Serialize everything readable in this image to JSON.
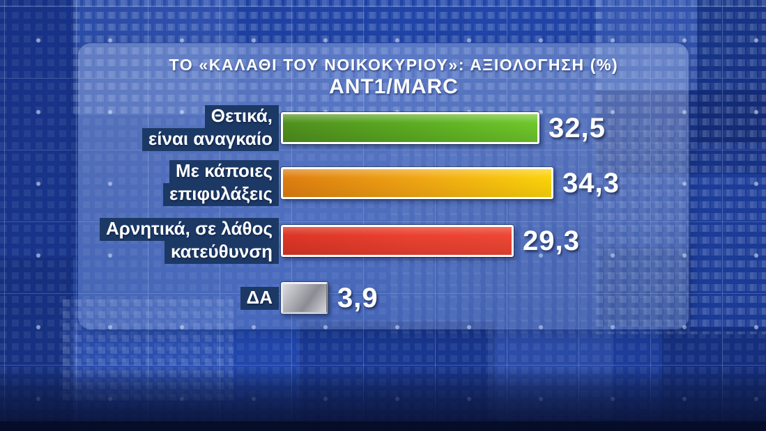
{
  "header": {
    "title": "ΤΟ «ΚΑΛΑΘΙ ΤΟΥ ΝΟΙΚΟΚΥΡΙΟΥ»: ΑΞΙΟΛΟΓΗΣΗ (%)",
    "subtitle": "ANT1/MARC"
  },
  "chart_data": {
    "type": "bar",
    "orientation": "horizontal",
    "unit": "%",
    "title": "ΤΟ «ΚΑΛΑΘΙ ΤΟΥ ΝΟΙΚΟΚΥΡΙΟΥ»: ΑΞΙΟΛΟΓΗΣΗ (%)",
    "subtitle": "ANT1/MARC",
    "categories": [
      "Θετικά, είναι αναγκαίο",
      "Με κάποιες επιφυλάξεις",
      "Αρνητικά, σε λάθος κατεύθυνση",
      "ΔΑ"
    ],
    "values": [
      32.5,
      34.3,
      29.3,
      3.9
    ],
    "xlim": [
      0,
      36
    ],
    "legend": "none",
    "grid": "decorative background grid only",
    "rows": [
      {
        "label_lines": [
          "Θετικά,",
          "είναι αναγκαίο"
        ],
        "value": 32.5,
        "value_display": "32,5",
        "color": "green"
      },
      {
        "label_lines": [
          "Με κάποιες",
          "επιφυλάξεις"
        ],
        "value": 34.3,
        "value_display": "34,3",
        "color": "yellow"
      },
      {
        "label_lines": [
          "Αρνητικά, σε λάθος",
          "κατεύθυνση"
        ],
        "value": 29.3,
        "value_display": "29,3",
        "color": "red"
      },
      {
        "label_lines": [
          "ΔΑ"
        ],
        "value": 3.9,
        "value_display": "3,9",
        "color": "gray"
      }
    ],
    "palette": {
      "green": "#5aa921",
      "yellow": "#f0a513",
      "red": "#e63c2b",
      "gray": "#a9aab0",
      "label_box": "#1c3966",
      "background_blue": "#2247ac",
      "panel_tint": "#9db4dc",
      "text": "#ffffff"
    }
  }
}
